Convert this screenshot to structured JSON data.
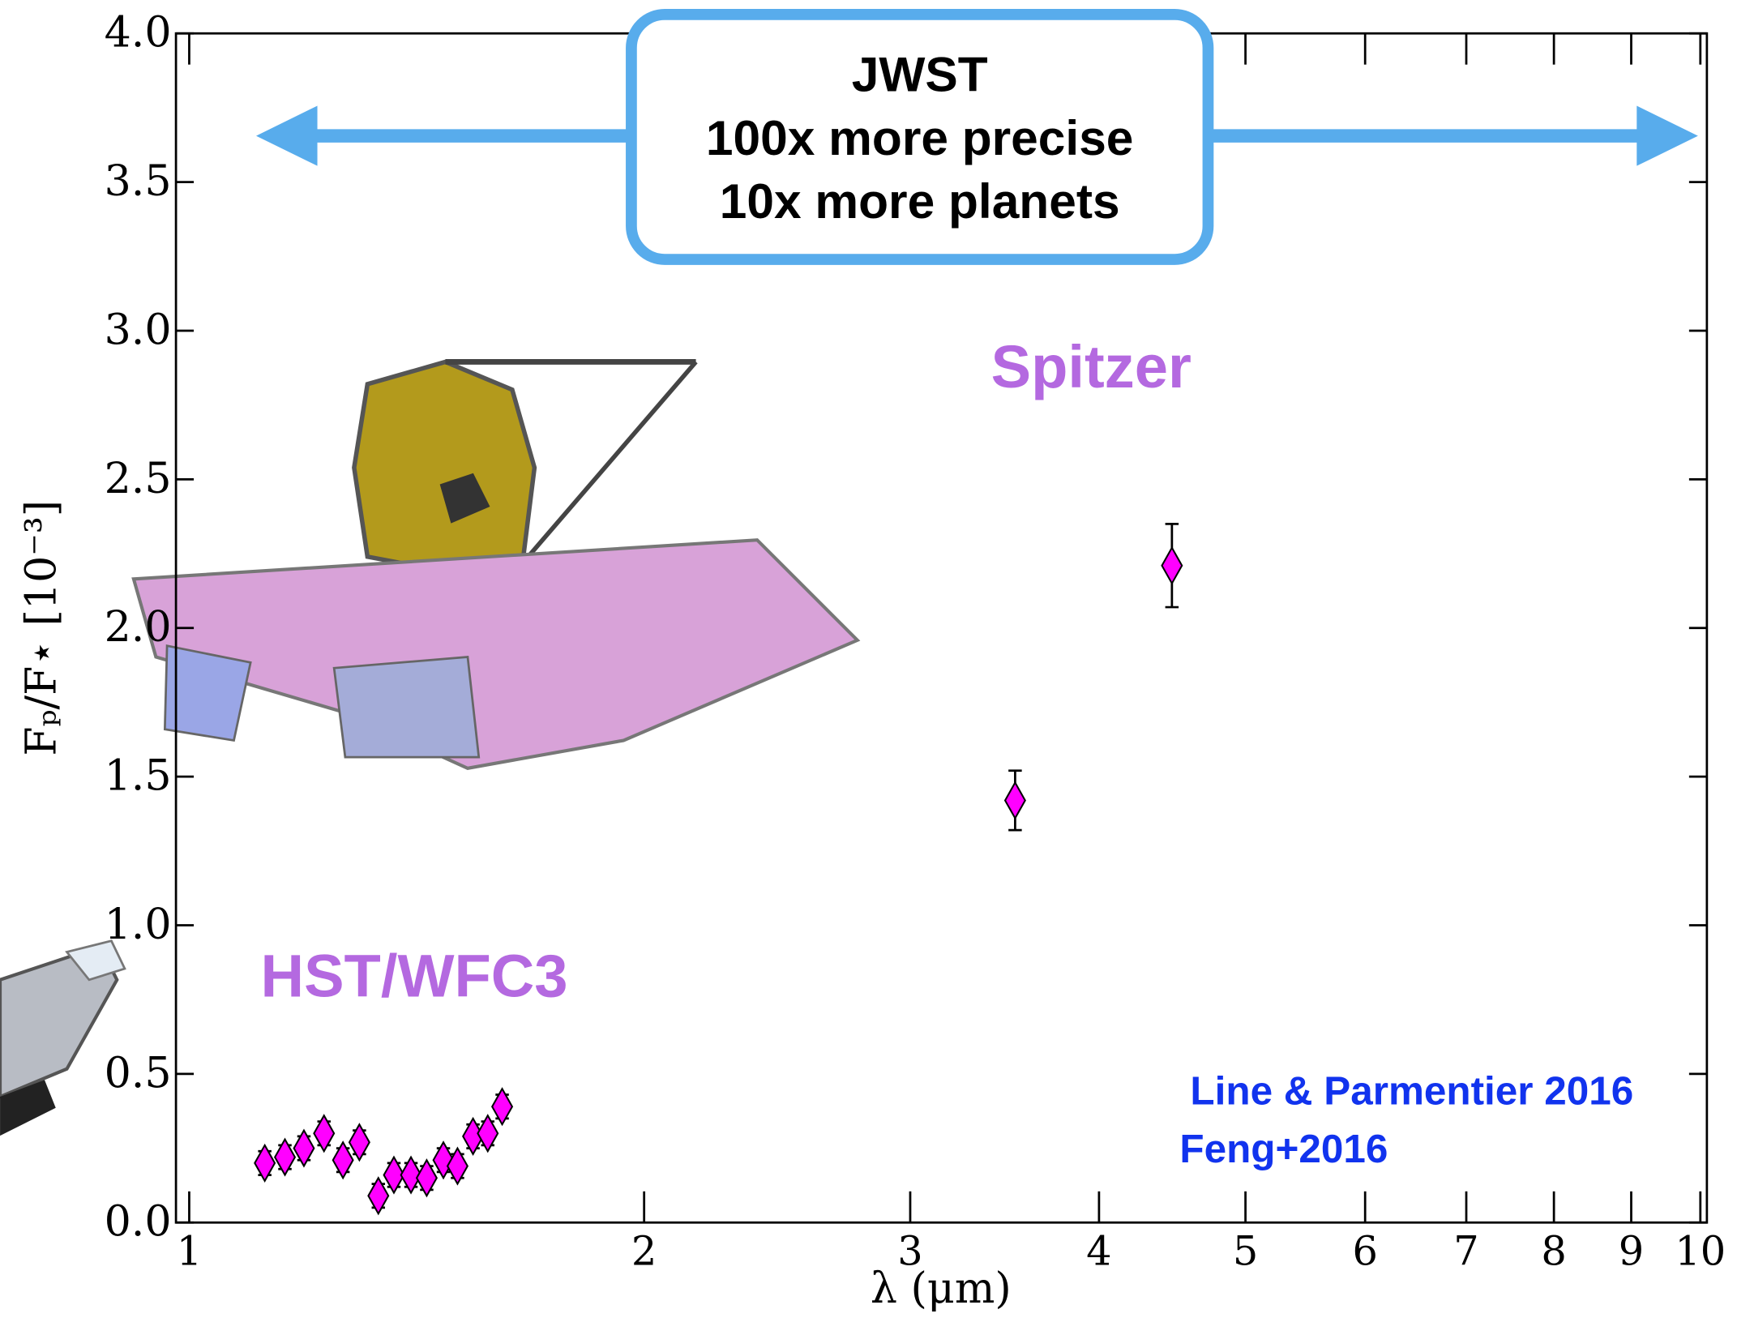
{
  "chart_data": {
    "type": "scatter",
    "x_label": "λ (μm)",
    "y_label": "Fₚ/F⋆ [10⁻³]",
    "log_x": true,
    "color": "#ff00ff",
    "x": [
      1.122,
      1.157,
      1.191,
      1.228,
      1.264,
      1.296,
      1.334,
      1.366,
      1.402,
      1.436,
      1.473,
      1.505,
      1.541,
      1.576,
      1.611,
      3.52,
      4.47
    ],
    "values": [
      0.2,
      0.22,
      0.25,
      0.3,
      0.21,
      0.27,
      0.09,
      0.16,
      0.16,
      0.15,
      0.21,
      0.19,
      0.29,
      0.3,
      0.39,
      1.42,
      2.21
    ],
    "errors": [
      0.04,
      0.04,
      0.04,
      0.04,
      0.04,
      0.04,
      0.04,
      0.04,
      0.04,
      0.04,
      0.04,
      0.04,
      0.04,
      0.04,
      0.04,
      0.1,
      0.14
    ],
    "xlim": [
      0.98,
      10.1
    ],
    "ylim": [
      0,
      4
    ],
    "xticks": [
      1,
      2,
      3,
      4,
      5,
      6,
      7,
      8,
      9,
      10
    ],
    "yticks": [
      {
        "value": 0,
        "label": "0.0"
      },
      0.5,
      {
        "value": 1,
        "label": "1.0"
      },
      1.5,
      {
        "value": 2,
        "label": "2.0"
      },
      2.5,
      {
        "value": 3,
        "label": "3.0"
      },
      3.5,
      {
        "value": 4,
        "label": "4.0"
      }
    ],
    "box_text": [
      "JWST",
      "100x more precise",
      "10x more planets"
    ],
    "annotations": [
      "Spitzer",
      "HST/WFC3",
      "Line & Parmentier 2016",
      "Feng+2016"
    ]
  }
}
